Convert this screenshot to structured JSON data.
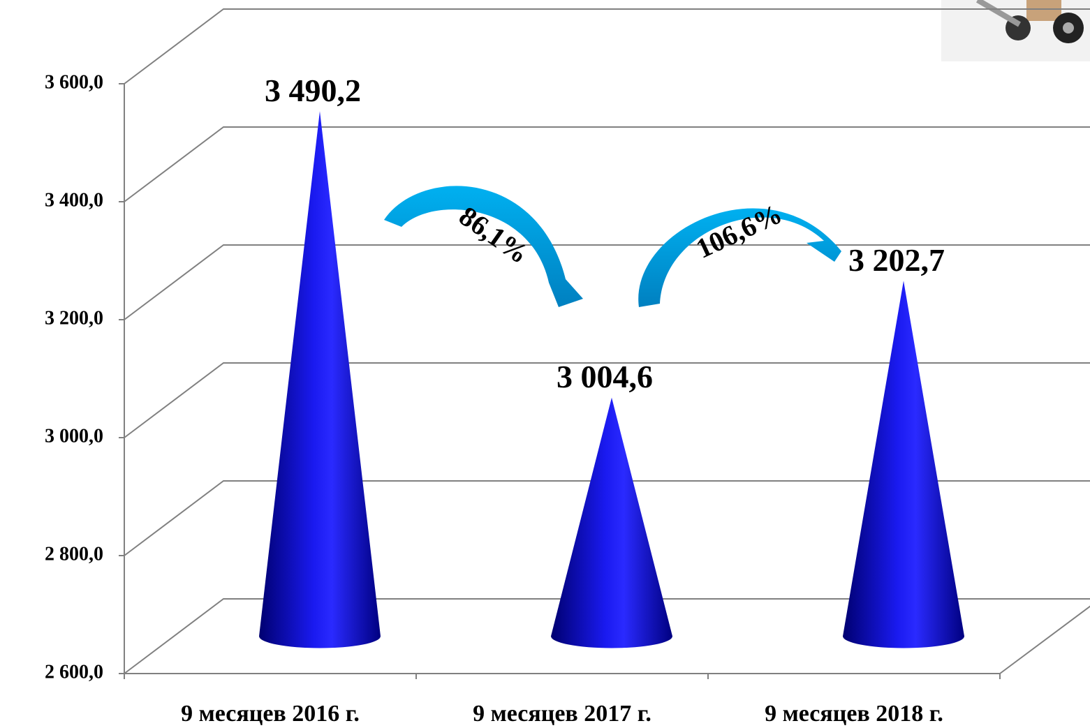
{
  "chart_data": {
    "type": "cone",
    "categories": [
      "9 месяцев  2016 г.",
      "9 месяцев  2017 г.",
      "9 месяцев  2018 г."
    ],
    "values": [
      3490.2,
      3004.6,
      3202.7
    ],
    "value_labels": [
      "3 490,2",
      "3 004,6",
      "3 202,7"
    ],
    "color": "#1010d0",
    "ylim": [
      2600,
      3600
    ],
    "yticks": [
      {
        "value": 2600,
        "label": "2 600,0"
      },
      {
        "value": 2800,
        "label": "2 800,0"
      },
      {
        "value": 3000,
        "label": "3 000,0"
      },
      {
        "value": 3200,
        "label": "3 200,0"
      },
      {
        "value": 3400,
        "label": "3 400,0"
      },
      {
        "value": 3600,
        "label": "3 600,0"
      }
    ],
    "grid": true,
    "annotations": [
      "86,1%",
      "106,6%"
    ]
  }
}
